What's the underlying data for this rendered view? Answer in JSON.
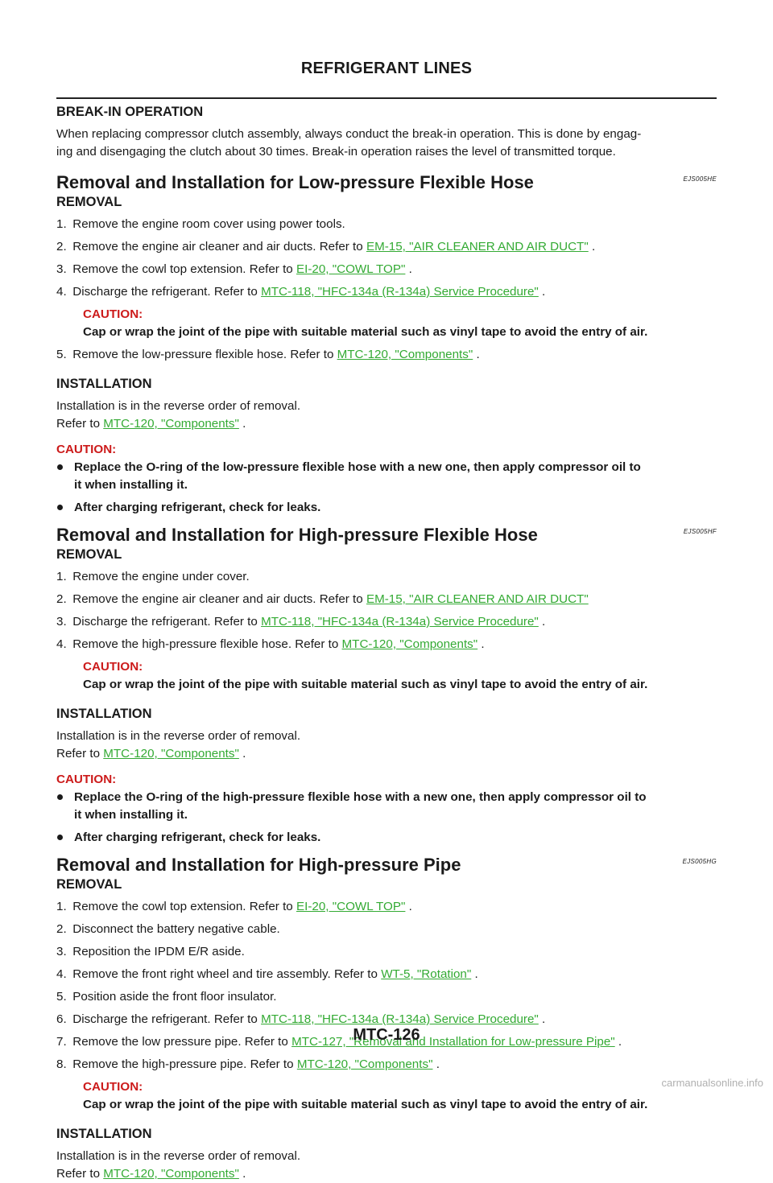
{
  "header": {
    "title": "REFRIGERANT LINES"
  },
  "breakin": {
    "heading": "BREAK-IN OPERATION",
    "text1": "When replacing compressor clutch assembly, always conduct the break-in operation. This is done by engag-",
    "text2": "ing and disengaging the clutch about 30 times. Break-in operation raises the level of transmitted torque."
  },
  "s1": {
    "title": "Removal and Installation for Low-pressure Flexible Hose",
    "code": "EJS005HE",
    "removal": "REMOVAL",
    "steps": [
      {
        "num": "1.",
        "text": "Remove the engine room cover using power tools.",
        "link": "",
        "after": ""
      },
      {
        "num": "2.",
        "text": "Remove the engine air cleaner and air ducts. Refer to ",
        "link": "EM-15, \"AIR CLEANER AND AIR DUCT\"",
        "after": " ."
      },
      {
        "num": "3.",
        "text": "Remove the cowl top extension. Refer to ",
        "link": "EI-20, \"COWL TOP\"",
        "after": " ."
      },
      {
        "num": "4.",
        "text": "Discharge the refrigerant. Refer to ",
        "link": "MTC-118, \"HFC-134a (R-134a) Service Procedure\"",
        "after": " ."
      },
      {
        "num": "5.",
        "text": "Remove the low-pressure flexible hose. Refer to ",
        "link": "MTC-120, \"Components\"",
        "after": " ."
      }
    ],
    "caution_label": "CAUTION:",
    "caution_text": "Cap or wrap the joint of the pipe with suitable material such as vinyl tape to avoid the entry of air.",
    "installation": "INSTALLATION",
    "inst_text": "Installation is in the reverse order of removal.",
    "refer": "Refer to ",
    "refer_link": "MTC-120, \"Components\"",
    "refer_after": " .",
    "caution2_label": "CAUTION:",
    "bullet1a": "Replace the O-ring of the low-pressure flexible hose with a new one, then apply compressor oil to",
    "bullet1b": "it when installing it.",
    "bullet2": "After charging refrigerant, check for leaks."
  },
  "s2": {
    "title": "Removal and Installation for High-pressure Flexible Hose",
    "code": "EJS005HF",
    "removal": "REMOVAL",
    "steps": [
      {
        "num": "1.",
        "text": "Remove the engine under cover.",
        "link": "",
        "after": ""
      },
      {
        "num": "2.",
        "text": "Remove the engine air cleaner and air ducts. Refer to ",
        "link": "EM-15, \"AIR CLEANER AND AIR DUCT\"",
        "after": ""
      },
      {
        "num": "3.",
        "text": "Discharge the refrigerant. Refer to ",
        "link": "MTC-118, \"HFC-134a (R-134a) Service Procedure\"",
        "after": " ."
      },
      {
        "num": "4.",
        "text": "Remove the high-pressure flexible hose. Refer to ",
        "link": "MTC-120, \"Components\"",
        "after": " ."
      }
    ],
    "caution_label": "CAUTION:",
    "caution_text": "Cap or wrap the joint of the pipe with suitable material such as vinyl tape to avoid the entry of air.",
    "installation": "INSTALLATION",
    "inst_text": "Installation is in the reverse order of removal.",
    "refer": "Refer to ",
    "refer_link": "MTC-120, \"Components\"",
    "refer_after": " .",
    "caution2_label": "CAUTION:",
    "bullet1a": "Replace the O-ring of the high-pressure flexible hose with a new one, then apply compressor oil to",
    "bullet1b": "it when installing it.",
    "bullet2": "After charging refrigerant, check for leaks."
  },
  "s3": {
    "title": "Removal and Installation for High-pressure Pipe",
    "code": "EJS005HG",
    "removal": "REMOVAL",
    "steps": [
      {
        "num": "1.",
        "text": "Remove the cowl top extension. Refer to ",
        "link": "EI-20, \"COWL TOP\"",
        "after": " ."
      },
      {
        "num": "2.",
        "text": "Disconnect the battery negative cable.",
        "link": "",
        "after": ""
      },
      {
        "num": "3.",
        "text": "Reposition the IPDM E/R aside.",
        "link": "",
        "after": ""
      },
      {
        "num": "4.",
        "text": "Remove the front right wheel and tire assembly. Refer to ",
        "link": "WT-5, \"Rotation\"",
        "after": " ."
      },
      {
        "num": "5.",
        "text": "Position aside the front floor insulator.",
        "link": "",
        "after": ""
      },
      {
        "num": "6.",
        "text": "Discharge the refrigerant. Refer to ",
        "link": "MTC-118, \"HFC-134a (R-134a) Service Procedure\"",
        "after": " ."
      },
      {
        "num": "7.",
        "text": "Remove the low pressure pipe. Refer to ",
        "link": "MTC-127, \"Removal and Installation for Low-pressure Pipe\"",
        "after": " ."
      },
      {
        "num": "8.",
        "text": "Remove the high-pressure pipe. Refer to ",
        "link": "MTC-120, \"Components\"",
        "after": " ."
      }
    ],
    "caution_label": "CAUTION:",
    "caution_text": "Cap or wrap the joint of the pipe with suitable material such as vinyl tape to avoid the entry of air.",
    "installation": "INSTALLATION",
    "inst_text": "Installation is in the reverse order of removal.",
    "refer": "Refer to ",
    "refer_link": "MTC-120, \"Components\"",
    "refer_after": " ."
  },
  "footer": {
    "page": "MTC-126"
  },
  "watermark": "carmanualsonline.info",
  "colors": {
    "link": "#33aa33",
    "caution": "#cc1a1a"
  }
}
